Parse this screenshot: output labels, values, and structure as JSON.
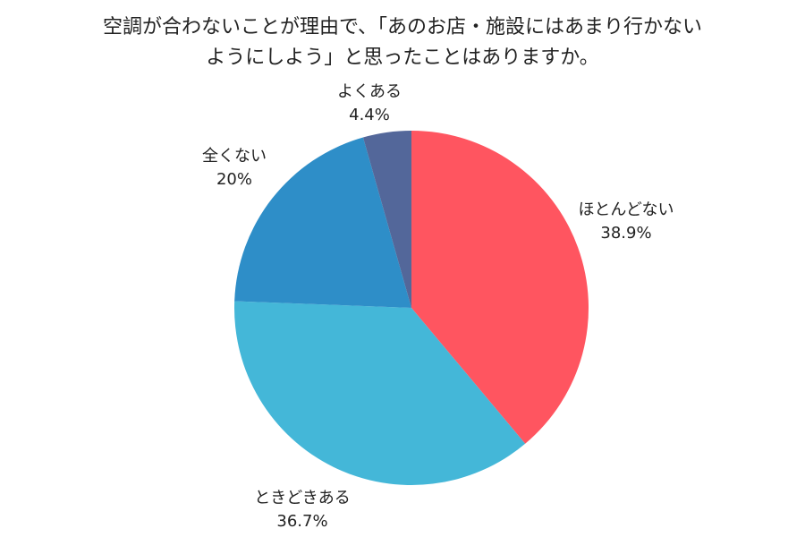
{
  "chart_data": {
    "type": "pie",
    "title_lines": [
      "空調が合わないことが理由で、「あのお店・施設にはあまり行かない",
      "ようにしよう」と思ったことはありますか。"
    ],
    "slices": [
      {
        "label": "ほとんどない",
        "value": 38.9,
        "value_label": "38.9%",
        "color": "#ff5560"
      },
      {
        "label": "ときどきある",
        "value": 36.7,
        "value_label": "36.7%",
        "color": "#44b7d8"
      },
      {
        "label": "全くない",
        "value": 20,
        "value_label": "20%",
        "color": "#2e8ec8"
      },
      {
        "label": "よくある",
        "value": 4.4,
        "value_label": "4.4%",
        "color": "#53679a"
      }
    ],
    "start": "12 o'clock",
    "direction": "clockwise",
    "legend": "none"
  }
}
